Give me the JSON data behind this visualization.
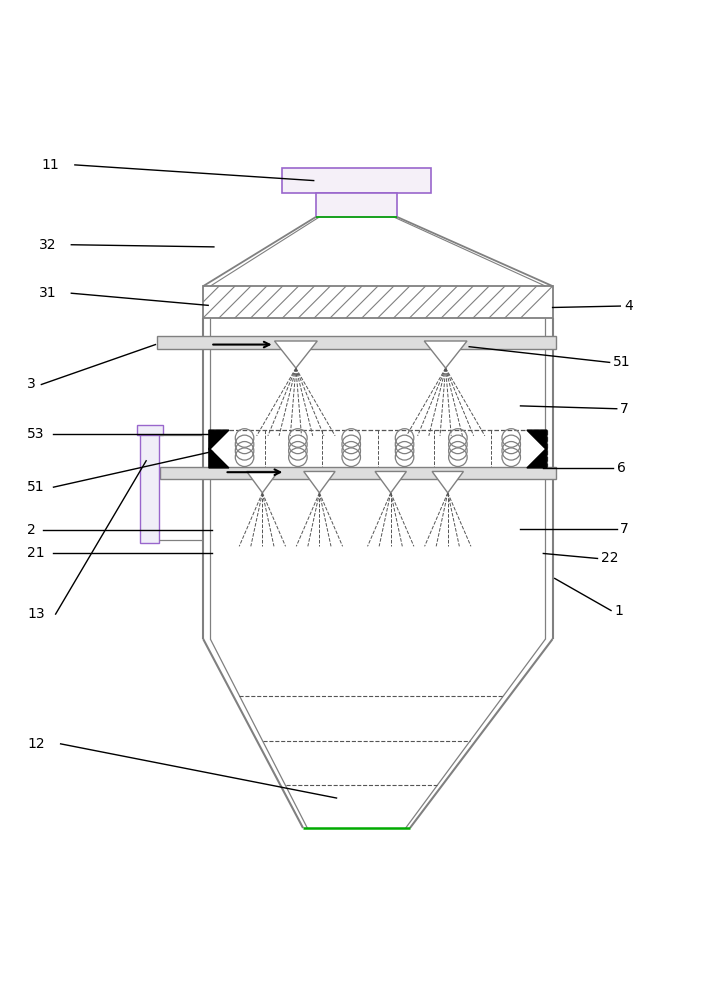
{
  "bg_color": "#ffffff",
  "line_color": "#000000",
  "gray_line": "#808080",
  "light_gray": "#c0c0c0",
  "green_color": "#00aa00",
  "dashed_color": "#555555",
  "purple_color": "#9966cc"
}
